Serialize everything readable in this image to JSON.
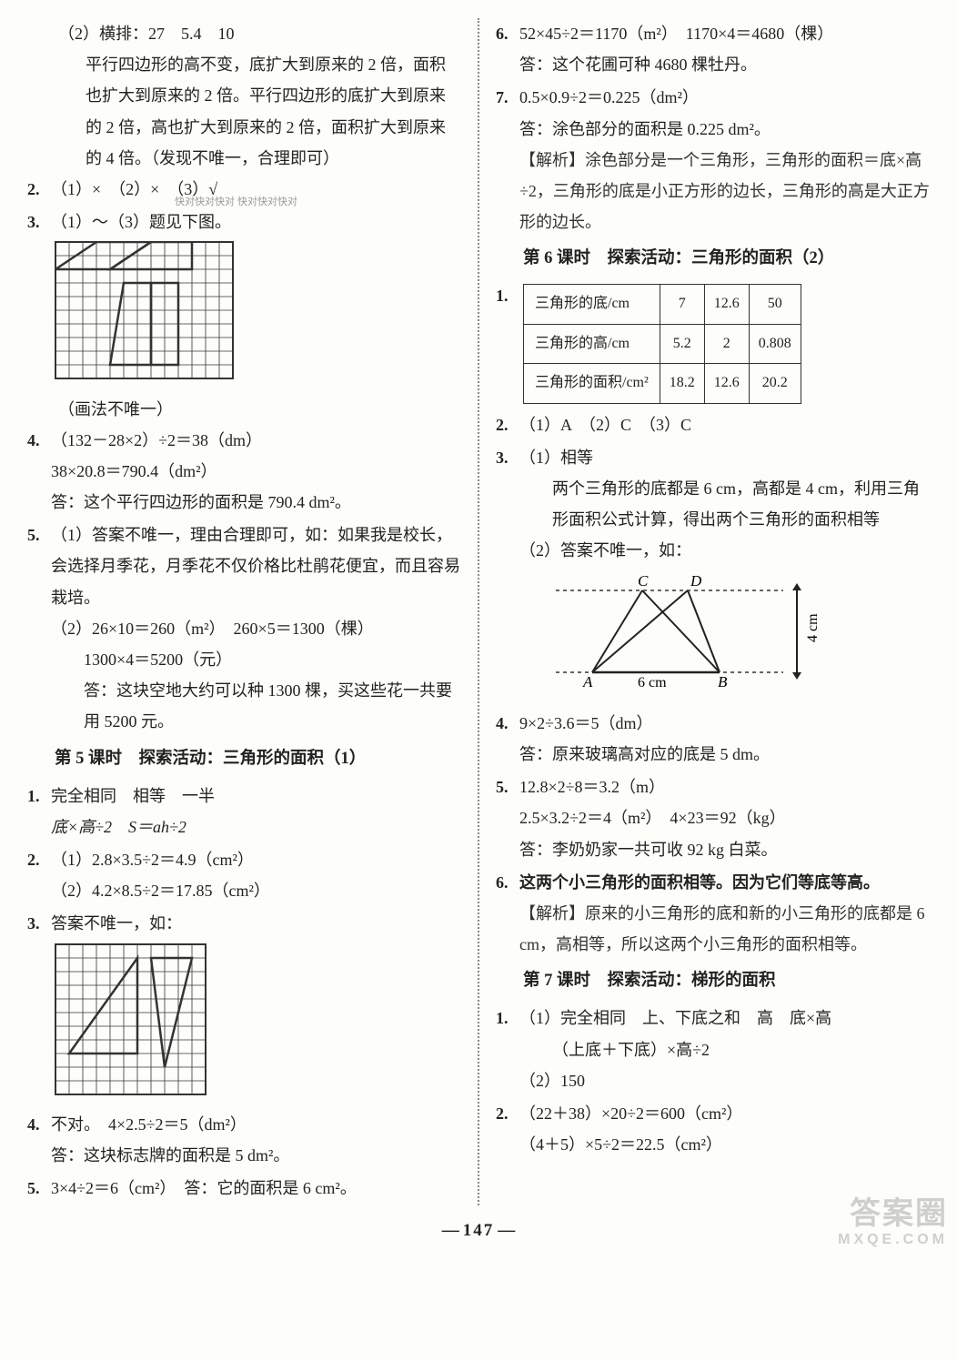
{
  "left": {
    "q1_2": "（2）横排：27　5.4　10",
    "q1_2_p1": "平行四边形的高不变，底扩大到原来的 2 倍，面积也扩大到原来的 2 倍。平行四边形的底扩大到原来的 2 倍，高也扩大到原来的 2 倍，面积扩大到原来的 4 倍。（发现不唯一，合理即可）",
    "q2": "（1）×　（2）×　（3）√",
    "q3": "（1）～（3）题见下图。",
    "q3_note": "（画法不唯一）",
    "q4_l1": "（132－28×2）÷2＝38（dm）",
    "q4_l2": "38×20.8＝790.4（dm²）",
    "q4_l3": "答：这个平行四边形的面积是 790.4 dm²。",
    "q5_1": "（1）答案不唯一，理由合理即可，如：如果我是校长，会选择月季花，月季花不仅价格比杜鹃花便宜，而且容易栽培。",
    "q5_2a": "（2）26×10＝260（m²）　260×5＝1300（棵）",
    "q5_2b": "1300×4＝5200（元）",
    "q5_2c": "答：这块空地大约可以种 1300 棵，买这些花一共要用 5200 元。",
    "sec5": "第 5 课时　探索活动：三角形的面积（1）",
    "s5_q1a": "完全相同　相等　一半",
    "s5_q1b": "底×高÷2　S＝ah÷2",
    "s5_q2a": "（1）2.8×3.5÷2＝4.9（cm²）",
    "s5_q2b": "（2）4.2×8.5÷2＝17.85（cm²）",
    "s5_q3": "答案不唯一，如：",
    "s5_q4a": "不对。　4×2.5÷2＝5（dm²）",
    "s5_q4b": "答：这块标志牌的面积是 5 dm²。",
    "s5_q5": "3×4÷2＝6（cm²）　答：它的面积是 6 cm²。"
  },
  "right": {
    "q6a": "52×45÷2＝1170（m²）　1170×4＝4680（棵）",
    "q6b": "答：这个花圃可种 4680 棵牡丹。",
    "q7a": "0.5×0.9÷2＝0.225（dm²）",
    "q7b": "答：涂色部分的面积是 0.225 dm²。",
    "q7c": "【解析】涂色部分是一个三角形，三角形的面积＝底×高÷2，三角形的底是小正方形的边长，三角形的高是大正方形的边长。",
    "sec6": "第 6 课时　探索活动：三角形的面积（2）",
    "table": {
      "r1": {
        "h": "三角形的底/cm",
        "c1": "7",
        "c2": "12.6",
        "c3": "50"
      },
      "r2": {
        "h": "三角形的高/cm",
        "c1": "5.2",
        "c2": "2",
        "c3": "0.808"
      },
      "r3": {
        "h": "三角形的面积/cm²",
        "c1": "18.2",
        "c2": "12.6",
        "c3": "20.2"
      }
    },
    "s6_q2": "（1）A　（2）C　（3）C",
    "s6_q3_1": "（1）相等",
    "s6_q3_1b": "两个三角形的底都是 6 cm，高都是 4 cm，利用三角形面积公式计算，得出两个三角形的面积相等",
    "s6_q3_2": "（2）答案不唯一，如：",
    "diagram": {
      "base": "6 cm",
      "height": "4 cm",
      "A": "A",
      "B": "B",
      "C": "C",
      "D": "D"
    },
    "s6_q4a": "9×2÷3.6＝5（dm）",
    "s6_q4b": "答：原来玻璃高对应的底是 5 dm。",
    "s6_q5a": "12.8×2÷8＝3.2（m）",
    "s6_q5b": "2.5×3.2÷2＝4（m²）　4×23＝92（kg）",
    "s6_q5c": "答：李奶奶家一共可收 92 kg 白菜。",
    "s6_q6a": "这两个小三角形的面积相等。因为它们等底等高。",
    "s6_q6b": "【解析】原来的小三角形的底和新的小三角形的底都是 6 cm，高相等，所以这两个小三角形的面积相等。",
    "sec7": "第 7 课时　探索活动：梯形的面积",
    "s7_q1a": "（1）完全相同　上、下底之和　高　底×高",
    "s7_q1b": "（上底＋下底）×高÷2",
    "s7_q1c": "（2）150",
    "s7_q2a": "（22＋38）×20÷2＝600（cm²）",
    "s7_q2b": "（4＋5）×5÷2＝22.5（cm²）"
  },
  "grid1": {
    "cells": 13,
    "rows": 10,
    "size": 15,
    "stroke": "#333",
    "fill": "#333",
    "paths": [
      "M 0 30 L 45 0 L 105 0 L 60 30 Z",
      "M 60 30 L 105 0 L 150 0 L 150 30 Z",
      "M 75 45 L 105 45 L 105 135 L 60 135 Z",
      "M 105 45 L 135 45 L 135 135 L 105 135 Z"
    ]
  },
  "grid2": {
    "cells": 11,
    "rows": 11,
    "size": 15,
    "stroke": "#333",
    "tris": [
      "M 15 120 L 90 15 L 90 120 Z",
      "M 105 15 L 150 15 L 120 135 Z"
    ]
  },
  "page": "147",
  "wm_small": "快对快对快对\n快对快对快对",
  "wm_big": {
    "l1": "答案圈",
    "l2": "MXQE.COM"
  }
}
